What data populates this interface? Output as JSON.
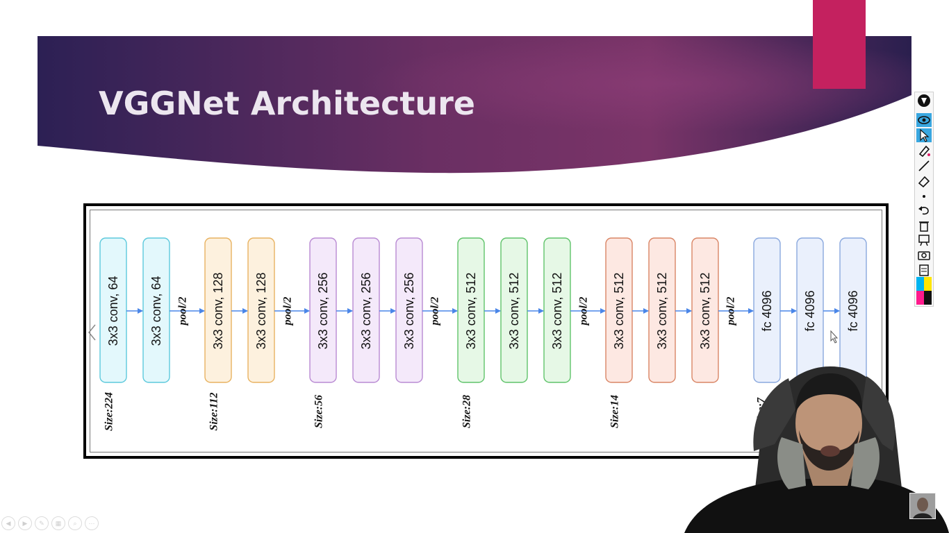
{
  "slide": {
    "title": "VGGNet Architecture",
    "colors": {
      "banner_dark": "#2e1f52",
      "banner_mid": "#6a2f63",
      "banner_light": "#9b3e73",
      "accent": "#c4215f",
      "arrow": "#4a86e8"
    }
  },
  "diagram": {
    "pool_label": "pool/2",
    "layers": [
      {
        "text": "3x3 conv, 64",
        "stage": 0
      },
      {
        "text": "3x3 conv, 64",
        "stage": 0
      },
      {
        "text": "3x3 conv, 128",
        "stage": 1
      },
      {
        "text": "3x3 conv, 128",
        "stage": 1
      },
      {
        "text": "3x3 conv, 256",
        "stage": 2
      },
      {
        "text": "3x3 conv, 256",
        "stage": 2
      },
      {
        "text": "3x3 conv, 256",
        "stage": 2
      },
      {
        "text": "3x3 conv, 512",
        "stage": 3
      },
      {
        "text": "3x3 conv, 512",
        "stage": 3
      },
      {
        "text": "3x3 conv, 512",
        "stage": 3
      },
      {
        "text": "3x3 conv, 512",
        "stage": 4
      },
      {
        "text": "3x3 conv, 512",
        "stage": 4
      },
      {
        "text": "3x3 conv, 512",
        "stage": 4
      },
      {
        "text": "fc 4096",
        "stage": 5
      },
      {
        "text": "fc 4096",
        "stage": 5
      },
      {
        "text": "fc 4096",
        "stage": 5
      }
    ],
    "stages": [
      {
        "size_label": "Size:224",
        "fill": "#e3f8fc",
        "stroke": "#5cc9dc"
      },
      {
        "size_label": "Size:112",
        "fill": "#fdf1de",
        "stroke": "#e8b260"
      },
      {
        "size_label": "Size:56",
        "fill": "#f4e9fa",
        "stroke": "#b98ad3"
      },
      {
        "size_label": "Size:28",
        "fill": "#e6f8e6",
        "stroke": "#5fc36a"
      },
      {
        "size_label": "Size:14",
        "fill": "#fde8e2",
        "stroke": "#d98565"
      },
      {
        "size_label": "Size:7",
        "fill": "#eaf0fc",
        "stroke": "#8aa8de"
      }
    ]
  },
  "toolbar": {
    "tools": [
      {
        "icon": "pen-logo-icon"
      },
      {
        "icon": "eye-icon"
      },
      {
        "icon": "cursor-icon"
      },
      {
        "icon": "marker-icon"
      },
      {
        "icon": "line-icon"
      },
      {
        "icon": "eraser-icon"
      },
      {
        "icon": "dot-icon"
      },
      {
        "icon": "undo-icon"
      },
      {
        "icon": "trash-icon"
      },
      {
        "icon": "whiteboard-icon"
      },
      {
        "icon": "camera-icon"
      },
      {
        "icon": "notes-icon"
      },
      {
        "icon": "color-palette-icon"
      }
    ]
  },
  "nav_controls": [
    {
      "icon": "prev-slide-icon"
    },
    {
      "icon": "next-slide-icon"
    },
    {
      "icon": "pen-tool-icon"
    },
    {
      "icon": "slides-grid-icon"
    },
    {
      "icon": "zoom-icon"
    },
    {
      "icon": "more-options-icon"
    }
  ]
}
